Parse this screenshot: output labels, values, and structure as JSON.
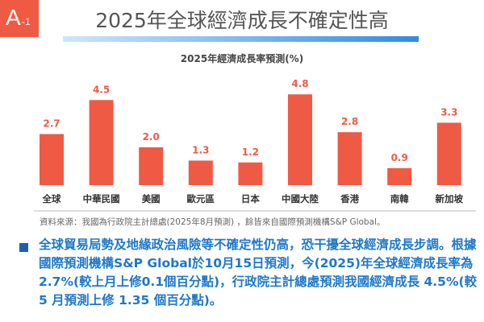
{
  "badge": {
    "letter": "A",
    "num": "-1"
  },
  "header": {
    "title": "2025年全球經濟成長不確定性高"
  },
  "chart_data": {
    "type": "bar",
    "title": "2025年經濟成長率預測(%)",
    "categories": [
      "全球",
      "中華民國",
      "美國",
      "歐元區",
      "日本",
      "中國大陸",
      "香港",
      "南韓",
      "新加坡"
    ],
    "values": [
      2.7,
      4.5,
      2.0,
      1.3,
      1.2,
      4.8,
      2.8,
      0.9,
      3.3
    ],
    "labels": [
      "2.7",
      "4.5",
      "2.0",
      "1.3",
      "1.2",
      "4.8",
      "2.8",
      "0.9",
      "3.3"
    ],
    "ylim": [
      0,
      5
    ],
    "bar_color": "#ef5a45",
    "label_color": "#ef5a45"
  },
  "source": "資料來源：我國為行政院主計總處(2025年8月預測) ，餘皆來自國際預測機構S&P Global。",
  "paragraph": "全球貿易局勢及地緣政治風險等不確定性仍高，恐干擾全球經濟成長步調。根據國際預測機構S&P  Global於10月15日預測，今(2025)年全球經濟成長率為2.7%(較上月上修0.1個百分點)，行政院主計總處預測我國經濟成長 4.5%(較 5 月預測上修 1.35 個百分點)。"
}
